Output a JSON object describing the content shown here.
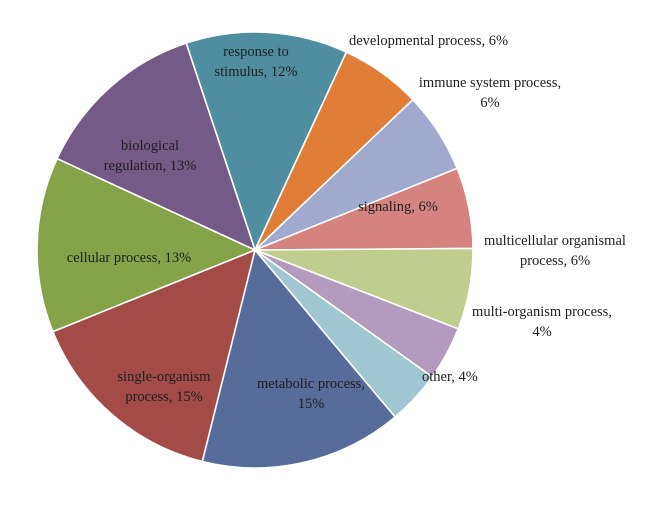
{
  "chart_data": {
    "type": "pie",
    "title": "",
    "slices": [
      {
        "name": "response to stimulus",
        "value": 12,
        "label_lines": [
          "response to",
          "stimulus, 12%"
        ],
        "color": "#4F8EA0"
      },
      {
        "name": "developmental process",
        "value": 6,
        "label_lines": [
          "developmental process, 6%"
        ],
        "color": "#E07E37"
      },
      {
        "name": "immune system process",
        "value": 6,
        "label_lines": [
          "immune system process,",
          "6%"
        ],
        "color": "#A2A9CE"
      },
      {
        "name": "signaling",
        "value": 6,
        "label_lines": [
          "signaling, 6%"
        ],
        "color": "#D4837F"
      },
      {
        "name": "multicellular organismal process",
        "value": 6,
        "label_lines": [
          "multicellular organismal",
          "process, 6%"
        ],
        "color": "#BFCE8E"
      },
      {
        "name": "multi-organism process",
        "value": 4,
        "label_lines": [
          "multi-organism process,",
          "4%"
        ],
        "color": "#B29BBF"
      },
      {
        "name": "other",
        "value": 4,
        "label_lines": [
          "other, 4%"
        ],
        "color": "#9FC6D2"
      },
      {
        "name": "metabolic process",
        "value": 15,
        "label_lines": [
          "metabolic process,",
          "15%"
        ],
        "color": "#566C99"
      },
      {
        "name": "single-organism process",
        "value": 15,
        "label_lines": [
          "single-organism",
          "process, 15%"
        ],
        "color": "#A34B47"
      },
      {
        "name": "cellular process",
        "value": 13,
        "label_lines": [
          "cellular process, 13%"
        ],
        "color": "#86A34A"
      },
      {
        "name": "biological regulation",
        "value": 13,
        "label_lines": [
          "biological",
          "regulation, 13%"
        ],
        "color": "#735A87"
      }
    ]
  }
}
